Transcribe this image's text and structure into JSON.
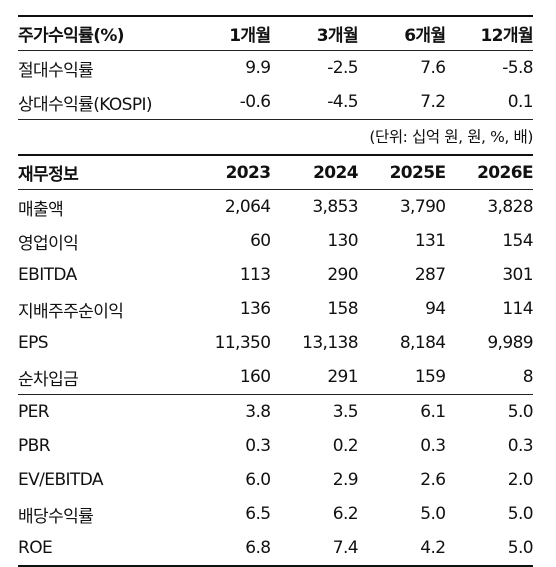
{
  "returns": {
    "header": [
      "주가수익률(%)",
      "1개월",
      "3개월",
      "6개월",
      "12개월"
    ],
    "rows": [
      [
        "절대수익률",
        "9.9",
        "-2.5",
        "7.6",
        "-5.8"
      ],
      [
        "상대수익률(KOSPI)",
        "-0.6",
        "-4.5",
        "7.2",
        "0.1"
      ]
    ]
  },
  "unit_note": "(단위: 십억 원, 원, %, 배)",
  "financials": {
    "header": [
      "재무정보",
      "2023",
      "2024",
      "2025E",
      "2026E"
    ],
    "rows": [
      [
        "매출액",
        "2,064",
        "3,853",
        "3,790",
        "3,828"
      ],
      [
        "영업이익",
        "60",
        "130",
        "131",
        "154"
      ],
      [
        "EBITDA",
        "113",
        "290",
        "287",
        "301"
      ],
      [
        "지배주주순이익",
        "136",
        "158",
        "94",
        "114"
      ],
      [
        "EPS",
        "11,350",
        "13,138",
        "8,184",
        "9,989"
      ],
      [
        "순차입금",
        "160",
        "291",
        "159",
        "8"
      ]
    ]
  },
  "valuation": {
    "rows": [
      [
        "PER",
        "3.8",
        "3.5",
        "6.1",
        "5.0"
      ],
      [
        "PBR",
        "0.3",
        "0.2",
        "0.3",
        "0.3"
      ],
      [
        "EV/EBITDA",
        "6.0",
        "2.9",
        "2.6",
        "2.0"
      ],
      [
        "배당수익률",
        "6.5",
        "6.2",
        "5.0",
        "5.0"
      ],
      [
        "ROE",
        "6.8",
        "7.4",
        "4.2",
        "5.0"
      ]
    ]
  }
}
